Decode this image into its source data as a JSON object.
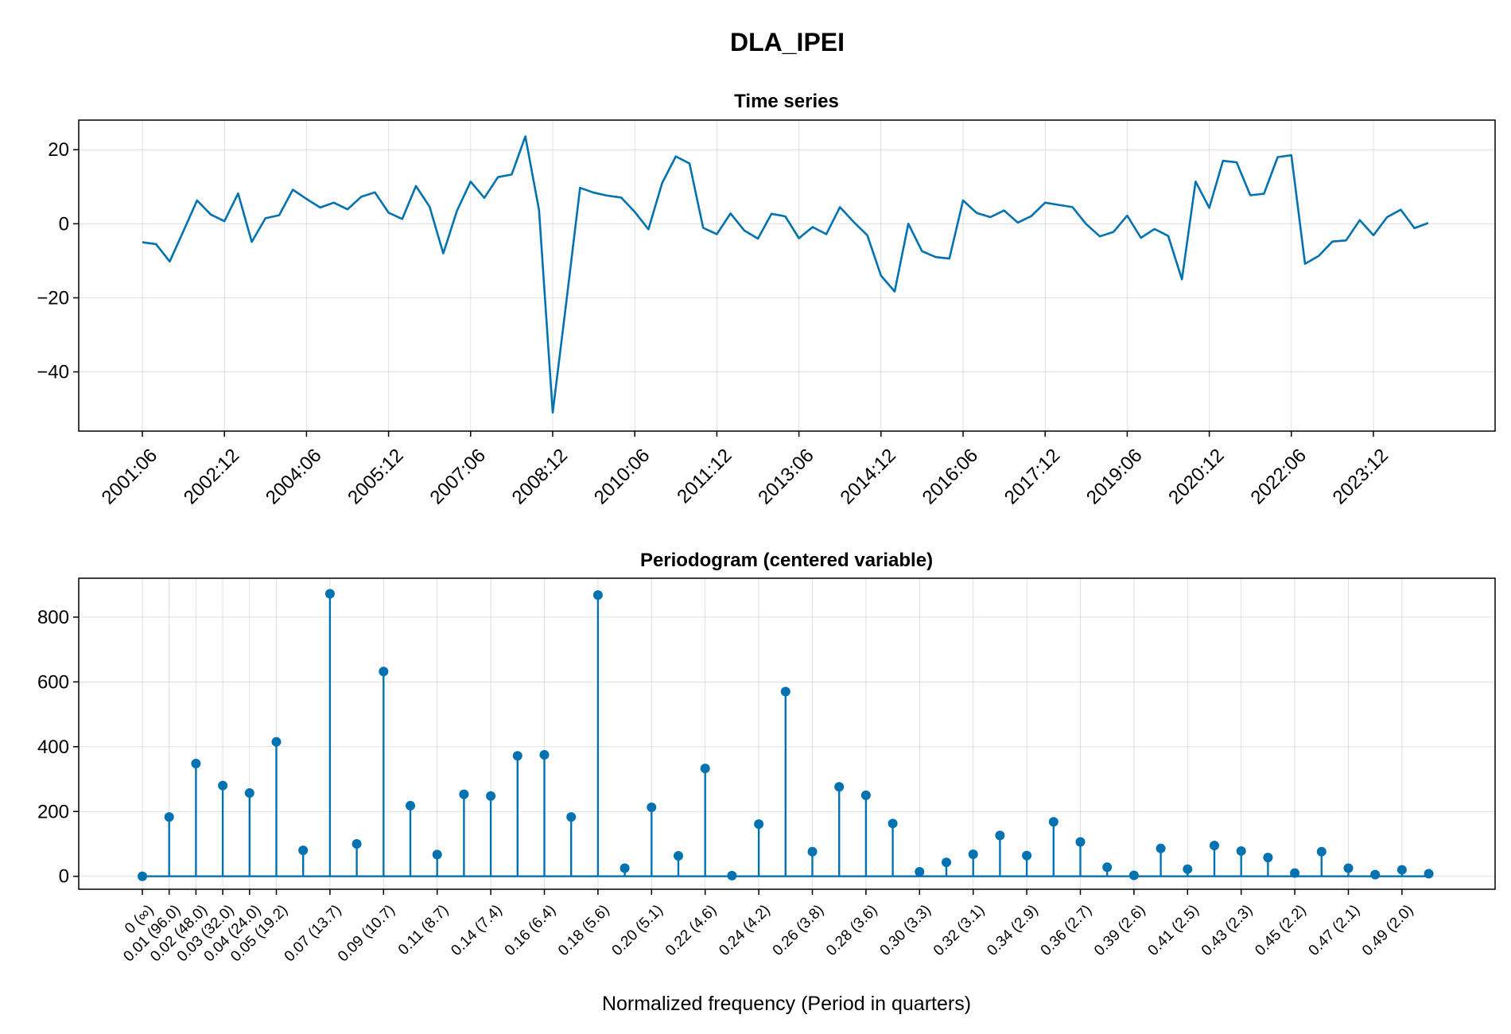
{
  "figure": {
    "title": "DLA_IPEI"
  },
  "chart_data": [
    {
      "type": "line",
      "title": "Time series",
      "xlabel": "",
      "ylabel": "",
      "ylim": [
        -56,
        28
      ],
      "yticks": [
        20,
        0,
        -20,
        -40
      ],
      "ytick_labels": [
        "20",
        "0",
        "−20",
        "−40"
      ],
      "xtick_labels": [
        "2001:06",
        "2002:12",
        "2004:06",
        "2005:12",
        "2007:06",
        "2008:12",
        "2010:06",
        "2011:12",
        "2013:06",
        "2014:12",
        "2016:06",
        "2017:12",
        "2019:06",
        "2020:12",
        "2022:06",
        "2023:12"
      ],
      "xtick_every": 6,
      "grid": true,
      "color": "#0072B2",
      "series": [
        {
          "values": [
            -5.0,
            -5.5,
            -10.2,
            -2.0,
            6.3,
            2.5,
            0.7,
            8.2,
            -4.9,
            1.5,
            2.3,
            9.2,
            6.7,
            4.4,
            5.7,
            3.9,
            7.3,
            8.5,
            3.0,
            1.3,
            10.2,
            4.6,
            -8.0,
            3.5,
            11.4,
            7.0,
            12.6,
            13.3,
            23.6,
            3.7,
            -51.0,
            -21.0,
            9.7,
            8.4,
            7.6,
            7.1,
            3.2,
            -1.5,
            11.0,
            18.2,
            16.3,
            -1.1,
            -2.8,
            2.8,
            -1.8,
            -4.0,
            2.7,
            2.0,
            -3.9,
            -0.9,
            -2.8,
            4.5,
            0.5,
            -3.1,
            -14.0,
            -18.3,
            0.0,
            -7.4,
            -9.0,
            -9.4,
            6.3,
            2.9,
            1.8,
            3.6,
            0.3,
            2.1,
            5.7,
            5.1,
            4.5,
            -0.1,
            -3.4,
            -2.2,
            2.2,
            -3.8,
            -1.4,
            -3.3,
            -15.0,
            11.4,
            4.3,
            17.0,
            16.6,
            7.7,
            8.1,
            18.0,
            18.5,
            -10.8,
            -8.7,
            -4.8,
            -4.5,
            1.0,
            -3.1,
            1.8,
            3.8,
            -1.2,
            0.2
          ]
        }
      ]
    },
    {
      "type": "stem",
      "title": "Periodogram (centered variable)",
      "xlabel": "Normalized frequency (Period in quarters)",
      "ylabel": "",
      "ylim": [
        -40,
        920
      ],
      "yticks": [
        0,
        200,
        400,
        600,
        800
      ],
      "ytick_labels": [
        "0",
        "200",
        "400",
        "600",
        "800"
      ],
      "xtick_labels": [
        "0 (∞)",
        "0.01 (96.0)",
        "0.02 (48.0)",
        "0.03 (32.0)",
        "0.04 (24.0)",
        "0.05 (19.2)",
        "0.07 (13.7)",
        "0.09 (10.7)",
        "0.11 (8.7)",
        "0.14 (7.4)",
        "0.16 (6.4)",
        "0.18 (5.6)",
        "0.20 (5.1)",
        "0.22 (4.6)",
        "0.24 (4.2)",
        "0.26 (3.8)",
        "0.28 (3.6)",
        "0.30 (3.3)",
        "0.32 (3.1)",
        "0.34 (2.9)",
        "0.36 (2.7)",
        "0.39 (2.6)",
        "0.41 (2.5)",
        "0.43 (2.3)",
        "0.45 (2.2)",
        "0.47 (2.1)",
        "0.49 (2.0)"
      ],
      "xtick_indices": [
        0,
        1,
        2,
        3,
        4,
        5,
        7,
        9,
        11,
        13,
        15,
        17,
        19,
        21,
        23,
        25,
        27,
        29,
        31,
        33,
        35,
        37,
        39,
        41,
        43,
        45,
        47
      ],
      "grid": true,
      "color": "#0072B2",
      "series": [
        {
          "values": [
            0,
            183,
            348,
            280,
            257,
            415,
            80,
            872,
            100,
            632,
            218,
            67,
            253,
            248,
            372,
            375,
            183,
            868,
            25,
            213,
            63,
            333,
            2,
            161,
            570,
            76,
            276,
            250,
            163,
            14,
            43,
            68,
            126,
            64,
            168,
            106,
            28,
            3,
            86,
            22,
            95,
            78,
            58,
            10,
            76,
            25,
            5,
            20,
            8
          ]
        }
      ]
    }
  ]
}
